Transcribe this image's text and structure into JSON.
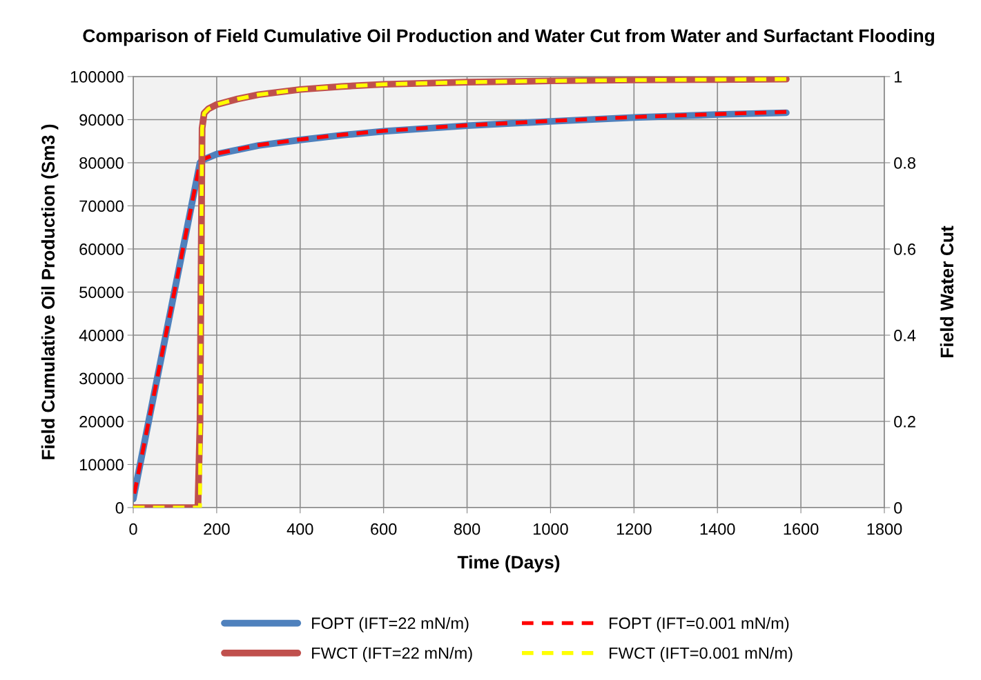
{
  "chart_data": {
    "type": "line",
    "title": "Comparison of Field Cumulative Oil Production and Water Cut from Water and Surfactant Flooding",
    "xlabel": "Time (Days)",
    "ylabel": "Field Cumulative Oil Production (Sm3 )",
    "y2label": "Field Water Cut",
    "xlim": [
      0,
      1800
    ],
    "xticks": [
      0,
      200,
      400,
      600,
      800,
      1000,
      1200,
      1400,
      1600,
      1800
    ],
    "ylim": [
      0,
      100000
    ],
    "yticks": [
      0,
      10000,
      20000,
      30000,
      40000,
      50000,
      60000,
      70000,
      80000,
      90000,
      100000
    ],
    "y2lim": [
      0,
      1
    ],
    "y2ticks": [
      0,
      0.2,
      0.4,
      0.6,
      0.8,
      1
    ],
    "grid": true,
    "legend": "bottom",
    "series": [
      {
        "name": "FOPT (IFT=22 mN/m)",
        "color": "#4f81bd",
        "line_style": "solid",
        "x": [
          0,
          160,
          165,
          200,
          300,
          400,
          500,
          600,
          800,
          1000,
          1200,
          1400,
          1565
        ],
        "values": [
          2000,
          80000,
          80600,
          82000,
          84000,
          85300,
          86400,
          87300,
          88600,
          89600,
          90500,
          91200,
          91600
        ]
      },
      {
        "name": "FOPT (IFT=0.001 mN/m)",
        "color": "#ff0000",
        "line_style": "dashed",
        "x": [
          0,
          160,
          165,
          200,
          300,
          400,
          500,
          600,
          800,
          1000,
          1200,
          1400,
          1565
        ],
        "values": [
          2000,
          80000,
          80700,
          82100,
          84100,
          85400,
          86500,
          87400,
          88700,
          89700,
          90600,
          91300,
          91800
        ]
      },
      {
        "name": "FWCT (IFT=22 mN/m)",
        "color": "#c0504d",
        "line_style": "solid",
        "axis": "y2",
        "x": [
          0,
          155,
          160,
          163,
          165,
          170,
          180,
          200,
          250,
          300,
          400,
          500,
          600,
          800,
          1000,
          1200,
          1400,
          1565
        ],
        "values": [
          0,
          0,
          0.2,
          0.6,
          0.88,
          0.915,
          0.925,
          0.935,
          0.948,
          0.958,
          0.97,
          0.977,
          0.982,
          0.987,
          0.99,
          0.992,
          0.993,
          0.994
        ]
      },
      {
        "name": "FWCT (IFT=0.001 mN/m)",
        "color": "#ffff00",
        "line_style": "dashed",
        "axis": "y2",
        "x": [
          0,
          160,
          163,
          165,
          170,
          180,
          200,
          250,
          300,
          400,
          500,
          600,
          800,
          1000,
          1200,
          1400,
          1565
        ],
        "values": [
          0,
          0,
          0.6,
          0.88,
          0.915,
          0.925,
          0.935,
          0.948,
          0.958,
          0.97,
          0.977,
          0.982,
          0.987,
          0.99,
          0.992,
          0.993,
          0.994
        ]
      }
    ]
  }
}
